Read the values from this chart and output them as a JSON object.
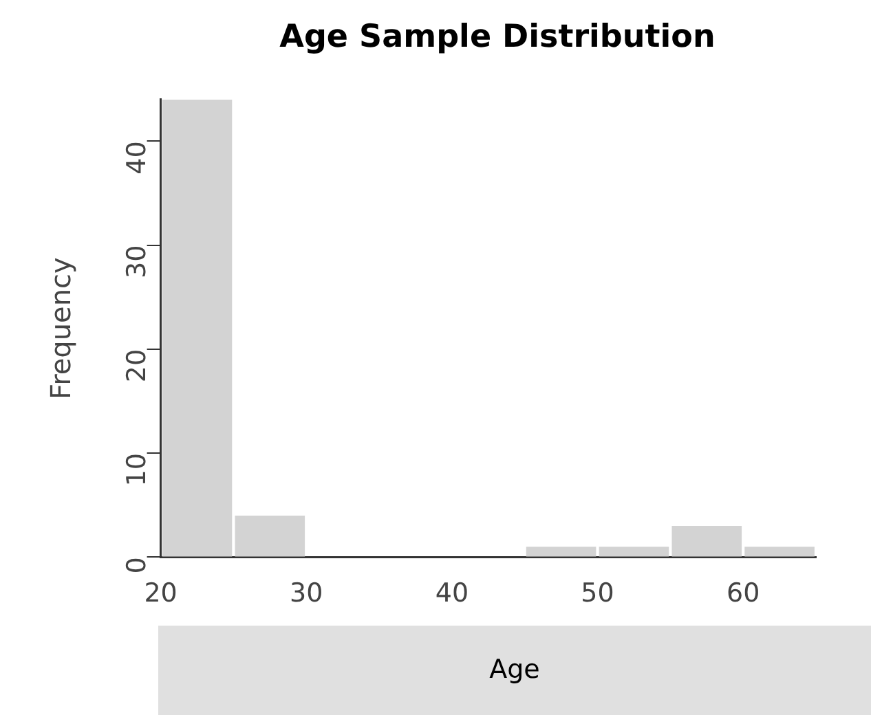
{
  "chart_data": {
    "type": "histogram",
    "title": "Age Sample Distribution",
    "xlabel": "Age",
    "ylabel": "Frequency",
    "bins": [
      20,
      25,
      30,
      35,
      40,
      45,
      50,
      55,
      60,
      65
    ],
    "values": [
      44,
      4,
      0,
      0,
      0,
      1,
      1,
      3,
      1
    ],
    "color": "#d3d3d3",
    "xlim": [
      20,
      65
    ],
    "xticks": [
      20,
      30,
      40,
      50,
      60
    ],
    "ylim": [
      0,
      44
    ],
    "yticks": [
      0,
      10,
      20,
      30,
      40
    ],
    "grid": false,
    "legend": false
  }
}
